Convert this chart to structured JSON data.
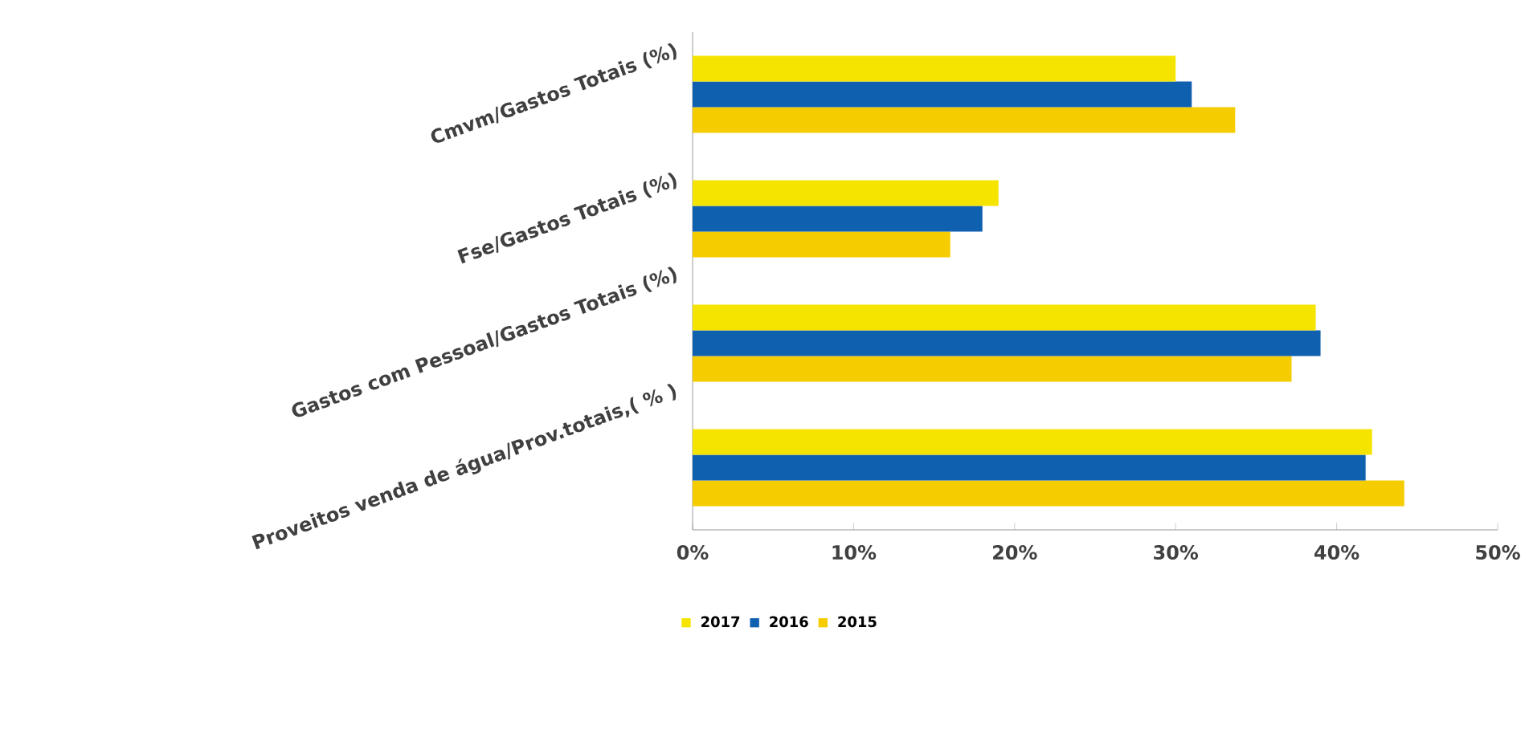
{
  "chart_data": {
    "type": "bar",
    "orientation": "horizontal",
    "categories": [
      "Cmvm/Gastos Totais (%)",
      "Fse/Gastos Totais (%)",
      "Gastos com Pessoal/Gastos Totais (%)",
      "Proveitos venda de água/Prov.totais,( % )"
    ],
    "series": [
      {
        "name": "2017",
        "color": "#f5e400",
        "values": [
          30,
          19,
          38.7,
          42.2
        ]
      },
      {
        "name": "2016",
        "color": "#1060b0",
        "values": [
          31,
          18,
          39,
          41.8
        ]
      },
      {
        "name": "2015",
        "color": "#f5cc00",
        "values": [
          33.7,
          16,
          37.2,
          44.2
        ]
      }
    ],
    "xlim": [
      0,
      50
    ],
    "xticks": [
      {
        "value": 0,
        "label": "0%"
      },
      {
        "value": 10,
        "label": "10%"
      },
      {
        "value": 20,
        "label": "20%"
      },
      {
        "value": 30,
        "label": "30%"
      },
      {
        "value": 40,
        "label": "40%"
      },
      {
        "value": 50,
        "label": "50%"
      }
    ],
    "grid": false,
    "legend": "bottom"
  }
}
